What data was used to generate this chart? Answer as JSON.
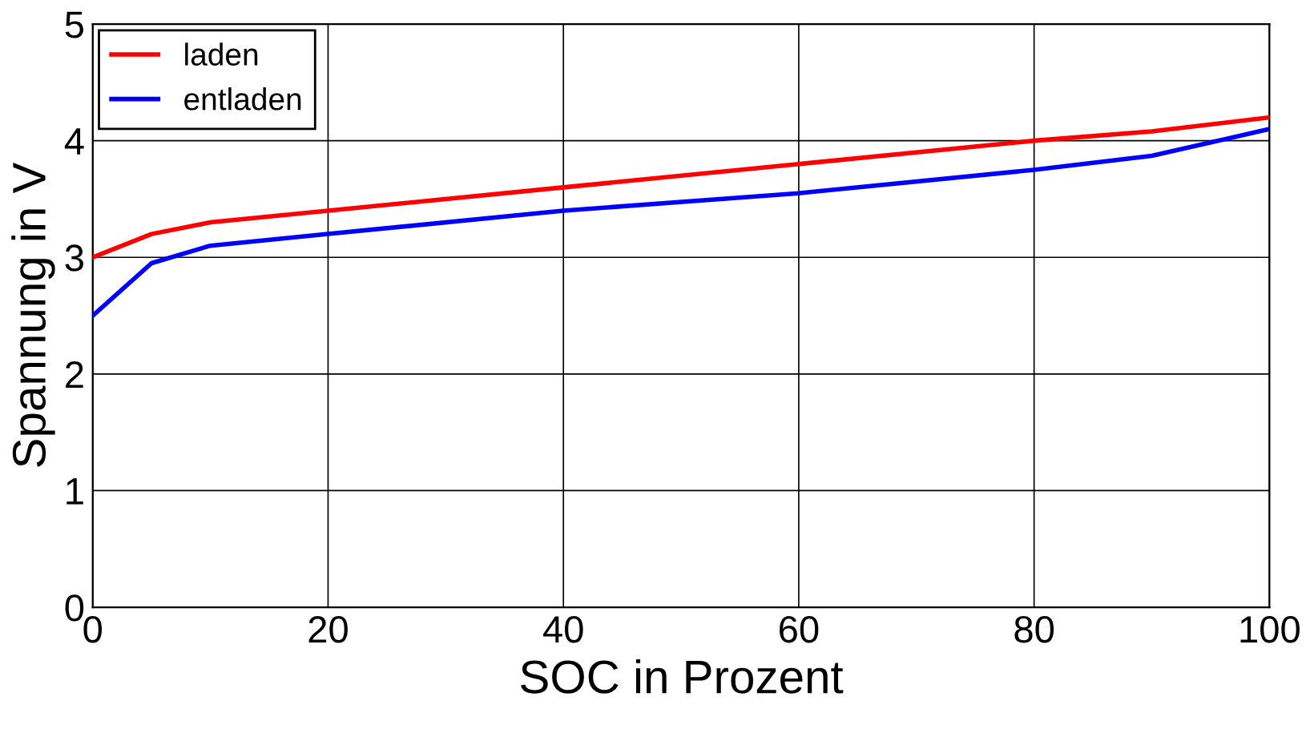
{
  "chart_data": {
    "type": "line",
    "xlabel": "SOC in Prozent",
    "ylabel": "Spannung in V",
    "x": [
      0,
      5,
      10,
      20,
      40,
      60,
      80,
      90,
      100
    ],
    "series": [
      {
        "name": "laden",
        "color": "#ff0000",
        "values": [
          3.0,
          3.2,
          3.3,
          3.4,
          3.6,
          3.8,
          4.0,
          4.08,
          4.2
        ]
      },
      {
        "name": "entladen",
        "color": "#0000ff",
        "values": [
          2.5,
          2.95,
          3.1,
          3.2,
          3.4,
          3.55,
          3.75,
          3.87,
          4.1
        ]
      }
    ],
    "xlim": [
      0,
      100
    ],
    "xticks": [
      0,
      20,
      40,
      60,
      80,
      100
    ],
    "ylim": [
      0,
      5
    ],
    "yticks": [
      0,
      1,
      2,
      3,
      4,
      5
    ],
    "grid": true,
    "legend": "top left",
    "marker": "none",
    "line_style": "solid"
  }
}
